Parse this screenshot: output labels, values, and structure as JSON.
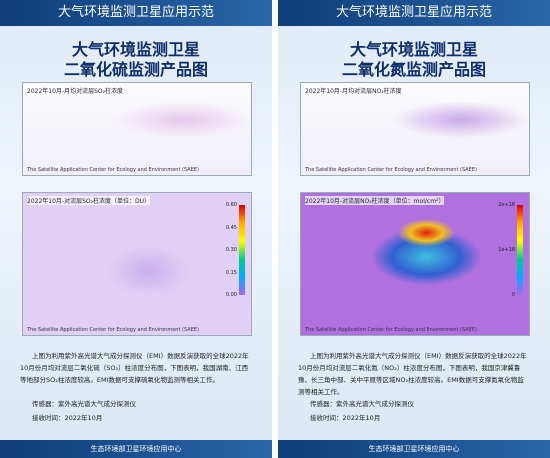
{
  "panels": [
    {
      "header": "大气环境监测卫星应用示范",
      "title": [
        "大气环境监测卫星",
        "二氧化硫监测产品图"
      ],
      "global_map": {
        "caption": "2022年10月-月均对流层SO₂柱浓度",
        "center": "The Satellite Application Center for Ecology and Environment (SAEE)"
      },
      "china_map": {
        "caption": "2022年10月-对流层SO₂柱浓度（单位：DU）",
        "ticks": [
          "0.60",
          "0.45",
          "0.30",
          "0.15",
          "0.00"
        ],
        "center": "The Satellite Application Center for Ecology and Environment (SAEE)"
      },
      "description": "上图为利用紫外高光谱大气成分探测仪（EMI）数据反演获取的全球2022年10月份月均对流层二氧化硫（SO₂）柱浓度分布图，下图表明，我国湖南、江西等地部分SO₂柱浓度较高。EMI数据可支撑硫氧化物监测等相关工作。",
      "sensor": "传感器：紫外高光谱大气成分探测仪",
      "time": "接收时间：2022年10月",
      "footer": "生态环境部卫星环境应用中心"
    },
    {
      "header": "大气环境监测卫星应用示范",
      "title": [
        "大气环境监测卫星",
        "二氧化氮监测产品图"
      ],
      "global_map": {
        "caption": "2022年10月-月均对流层NO₂柱浓度",
        "center": "The Satellite Application Center for Ecology and Environment (SAEE)"
      },
      "china_map": {
        "caption": "2022年10月-对流层NO₂柱浓度（单位：mol/cm²）",
        "ticks": [
          "2e+16",
          "1e+16",
          "0"
        ],
        "center": "The Satellite Application Center for Ecology and Environment (SAEE)"
      },
      "description": "上图为利用紫外高光谱大气成分探测仪（EMI）数据反演获取的全球2022年10月份月均对流层二氧化氮（NO₂）柱浓度分布图，下图表明，我国京津冀鲁豫、长三角中部、关中平原等区域NO₂柱浓度较高。EMI数据可支撑氮氧化物监测等相关工作。",
      "sensor": "传感器：紫外高光谱大气成分探测仪",
      "time": "接收时间：2022年10月",
      "footer": "生态环境部卫星环境应用中心"
    }
  ]
}
